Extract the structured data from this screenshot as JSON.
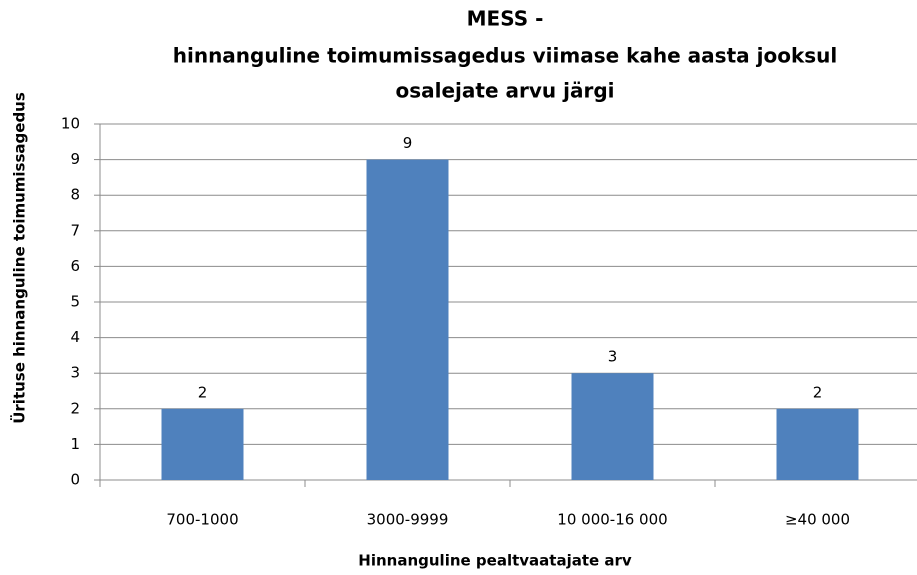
{
  "chart_data": {
    "type": "bar",
    "title": [
      "MESS -",
      "hinnanguline toimumissagedus viimase kahe aasta jooksul",
      "osalejate arvu järgi"
    ],
    "x_label": "Hinnanguline  pealtvaatajate  arv",
    "y_label": "Ürituse hinnanguline  toimumissagedus",
    "categories": [
      "700-1000",
      "3000-9999",
      "10 000-16 000",
      "≥40 000"
    ],
    "values": [
      2,
      9,
      3,
      2
    ],
    "color": "#4f81bd",
    "ylim": [
      0,
      10
    ],
    "yticks": [
      0,
      1,
      2,
      3,
      4,
      5,
      6,
      7,
      8,
      9,
      10
    ],
    "grid": true
  }
}
